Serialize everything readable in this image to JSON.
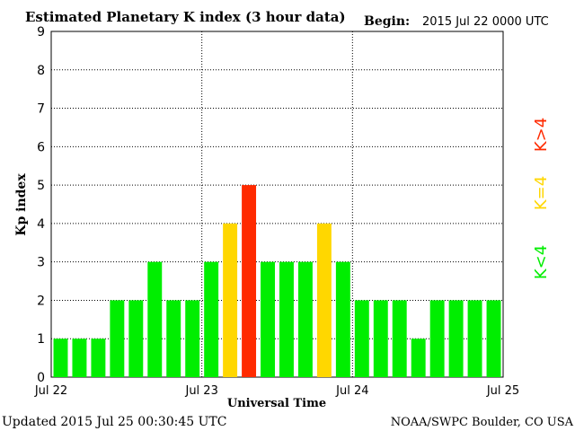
{
  "chart_data": {
    "type": "bar",
    "title": "Estimated Planetary K index (3 hour data)",
    "begin_label": "Begin:",
    "begin_value": "2015 Jul 22 0000 UTC",
    "xlabel": "Universal Time",
    "ylabel": "Kp index",
    "ylim": [
      0,
      9
    ],
    "yticks": [
      "0",
      "1",
      "2",
      "3",
      "4",
      "5",
      "6",
      "7",
      "8",
      "9"
    ],
    "xticks": [
      "Jul 22",
      "Jul 23",
      "Jul 24",
      "Jul 25"
    ],
    "grid": true,
    "values": [
      1,
      1,
      1,
      2,
      2,
      3,
      2,
      2,
      3,
      4,
      5,
      3,
      3,
      3,
      4,
      3,
      2,
      2,
      2,
      1,
      2,
      2,
      2,
      2
    ],
    "legend": {
      "low": "K<4",
      "mid": "K=4",
      "high": "K>4"
    },
    "colors": {
      "low": "#00ee00",
      "mid": "#ffd700",
      "high": "#ff2a00"
    }
  },
  "footer": {
    "updated": "Updated 2015 Jul 25 00:30:45 UTC",
    "source": "NOAA/SWPC Boulder, CO USA"
  }
}
